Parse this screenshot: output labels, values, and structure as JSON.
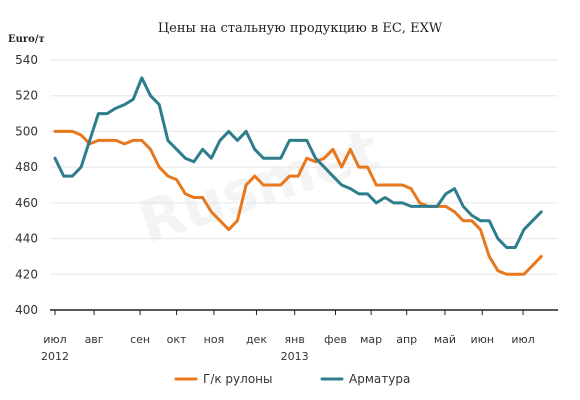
{
  "chart_data": {
    "type": "line",
    "title": "Цены на стальную продукцию в ЕС, EXW",
    "ylabel": "Euro/т",
    "ylim": [
      400,
      540
    ],
    "yticks": [
      400,
      420,
      440,
      460,
      480,
      500,
      520,
      540
    ],
    "grid": true,
    "legend_position": "bottom",
    "x_week_range": [
      0,
      57
    ],
    "month_ticks": [
      {
        "label": "июл",
        "sub": "2012",
        "week": 0
      },
      {
        "label": "авг",
        "sub": "",
        "week": 4.5
      },
      {
        "label": "сен",
        "sub": "",
        "week": 9.8
      },
      {
        "label": "окт",
        "sub": "",
        "week": 14
      },
      {
        "label": "ноя",
        "sub": "",
        "week": 18.3
      },
      {
        "label": "дек",
        "sub": "",
        "week": 23.2
      },
      {
        "label": "янв",
        "sub": "2013",
        "week": 27.6
      },
      {
        "label": "фев",
        "sub": "",
        "week": 32.3
      },
      {
        "label": "мар",
        "sub": "",
        "week": 36.4
      },
      {
        "label": "апр",
        "sub": "",
        "week": 40.5
      },
      {
        "label": "май",
        "sub": "",
        "week": 44.9
      },
      {
        "label": "июн",
        "sub": "",
        "week": 49.2
      },
      {
        "label": "июл",
        "sub": "",
        "week": 53.9
      }
    ],
    "series": [
      {
        "name": "Г/к рулоны",
        "color": "#E8781E",
        "values": [
          500,
          500,
          500,
          498,
          493,
          495,
          495,
          495,
          493,
          495,
          495,
          490,
          480,
          475,
          473,
          465,
          463,
          463,
          455,
          450,
          445,
          450,
          470,
          475,
          470,
          470,
          470,
          475,
          475,
          485,
          483,
          485,
          490,
          480,
          490,
          480,
          480,
          470,
          470,
          470,
          470,
          468,
          460,
          458,
          458,
          458,
          455,
          450,
          450,
          445,
          430,
          422,
          420,
          420,
          420,
          425,
          430
        ]
      },
      {
        "name": "Арматура",
        "color": "#2E7D8C",
        "values": [
          485,
          475,
          475,
          480,
          495,
          510,
          510,
          513,
          515,
          518,
          530,
          520,
          515,
          495,
          490,
          485,
          483,
          490,
          485,
          495,
          500,
          495,
          500,
          490,
          485,
          485,
          485,
          495,
          495,
          495,
          485,
          480,
          475,
          470,
          468,
          465,
          465,
          460,
          463,
          460,
          460,
          458,
          458,
          458,
          458,
          465,
          468,
          458,
          453,
          450,
          450,
          440,
          435,
          435,
          445,
          450,
          455
        ]
      }
    ]
  }
}
